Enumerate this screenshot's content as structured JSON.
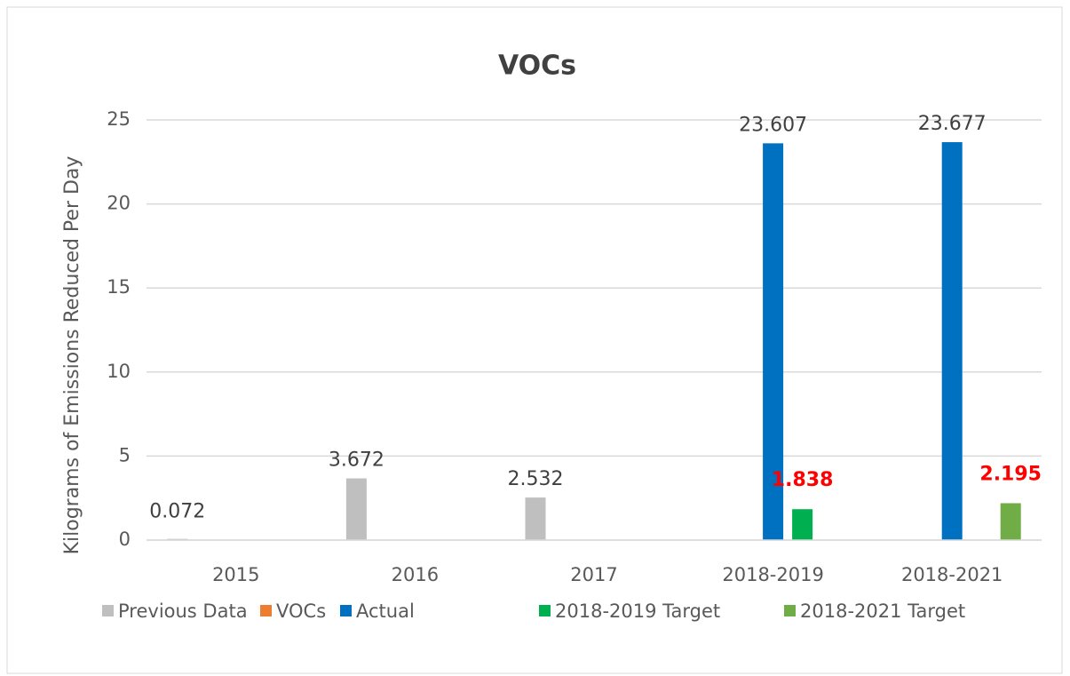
{
  "chart_data": {
    "type": "bar",
    "title": "VOCs",
    "y_label": "Kilograms of Emissions Reduced  Per Day",
    "categories": [
      "2015",
      "2016",
      "2017",
      "2018-2019",
      "2018-2021"
    ],
    "series": [
      {
        "name": "Previous Data",
        "color": "#bfbfbf",
        "label_color": "#404040",
        "values": [
          0.072,
          3.672,
          2.532,
          null,
          null
        ]
      },
      {
        "name": "VOCs",
        "color": "#ed7d31",
        "label_color": "#404040",
        "values": [
          null,
          null,
          null,
          null,
          null
        ]
      },
      {
        "name": "Actual",
        "color": "#0070c0",
        "label_color": "#404040",
        "values": [
          null,
          null,
          null,
          23.607,
          23.677
        ]
      },
      {
        "name": "2018-2019 Target",
        "color": "#00b050",
        "label_color": "#ff0000",
        "values": [
          null,
          null,
          null,
          1.838,
          null
        ]
      },
      {
        "name": "2018-2021 Target",
        "color": "#70ad47",
        "label_color": "#ff0000",
        "values": [
          null,
          null,
          null,
          null,
          2.195
        ]
      }
    ],
    "ylim": [
      0,
      25
    ],
    "yticks": [
      0,
      5,
      10,
      15,
      20,
      25
    ],
    "grid": true,
    "legend": "bottom"
  }
}
